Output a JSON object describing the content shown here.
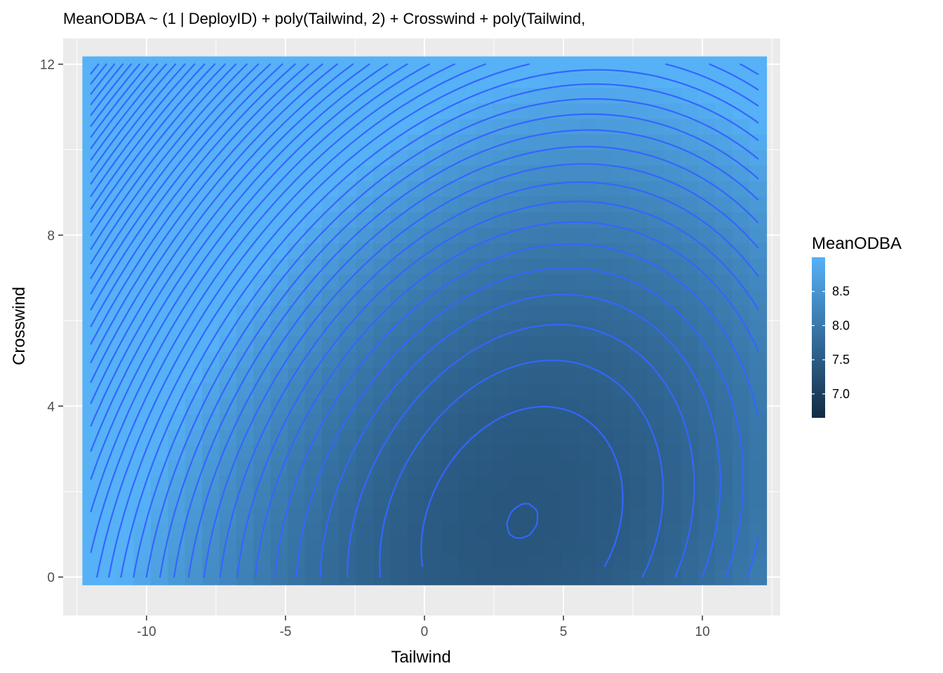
{
  "chart_data": {
    "type": "heatmap",
    "title": "MeanODBA ~ (1 | DeployID) + poly(Tailwind, 2) + Crosswind + poly(Tailwind,",
    "xlabel": "Tailwind",
    "ylabel": "Crosswind",
    "xlim": [
      -13.0,
      12.8
    ],
    "ylim": [
      -0.9,
      12.6
    ],
    "x_ticks": [
      -10,
      -5,
      0,
      5,
      10
    ],
    "x_tick_labels": [
      "-10",
      "-5",
      "0",
      "5",
      "10"
    ],
    "y_ticks": [
      0,
      4,
      8,
      12
    ],
    "y_tick_labels": [
      "0",
      "4",
      "8",
      "12"
    ],
    "grid": true,
    "background": "#ebebeb",
    "grid_color": "#ffffff",
    "tile_extent": {
      "x": [
        -12.0,
        12.0
      ],
      "y": [
        0.0,
        12.0
      ]
    },
    "fill_value_range": [
      6.65,
      9.0
    ],
    "contour_color": "#3366ff",
    "low_color": "#132b43",
    "high_color": "#56b1f7",
    "legend": {
      "title": "MeanODBA",
      "position": "right",
      "breaks": [
        7.0,
        7.5,
        8.0,
        8.5
      ],
      "labels": [
        "7.0",
        "7.5",
        "8.0",
        "8.5"
      ]
    }
  }
}
